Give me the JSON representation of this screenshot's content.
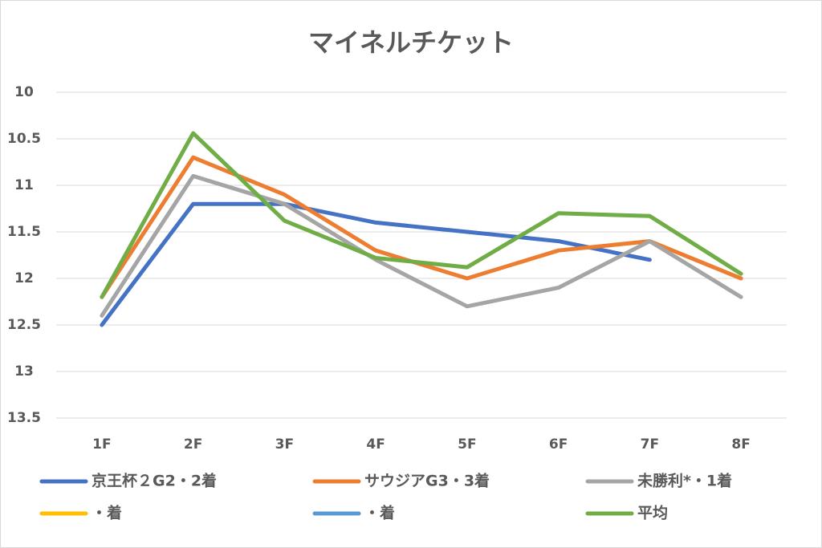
{
  "chart_data": {
    "type": "line",
    "title": "マイネルチケット",
    "categories": [
      "1F",
      "2F",
      "3F",
      "4F",
      "5F",
      "6F",
      "7F",
      "8F"
    ],
    "series": [
      {
        "name": "京王杯２G2・2着",
        "color": "#4472c4",
        "values": [
          12.5,
          11.2,
          11.2,
          11.4,
          11.5,
          11.6,
          11.8,
          null
        ]
      },
      {
        "name": "サウジアG3・3着",
        "color": "#ed7d31",
        "values": [
          12.2,
          10.7,
          11.1,
          11.7,
          12.0,
          11.7,
          11.6,
          12.0
        ]
      },
      {
        "name": "未勝利*・1着",
        "color": "#a5a5a5",
        "values": [
          12.4,
          10.9,
          11.2,
          11.8,
          12.3,
          12.1,
          11.6,
          12.2
        ]
      },
      {
        "name": "・着",
        "color": "#ffc000",
        "values": [
          null,
          null,
          null,
          null,
          null,
          null,
          null,
          null
        ]
      },
      {
        "name": "・着",
        "color": "#5b9bd5",
        "values": [
          null,
          null,
          null,
          null,
          null,
          null,
          null,
          null
        ]
      },
      {
        "name": "平均",
        "color": "#70ad47",
        "values": [
          12.2,
          10.44,
          11.38,
          11.78,
          11.88,
          11.3,
          11.33,
          11.95
        ]
      }
    ],
    "ylim": [
      10,
      13.5
    ],
    "y_inverted": true,
    "yticks": [
      10,
      10.5,
      11,
      11.5,
      12,
      12.5,
      13,
      13.5
    ],
    "grid": true,
    "legend": "bottom"
  }
}
